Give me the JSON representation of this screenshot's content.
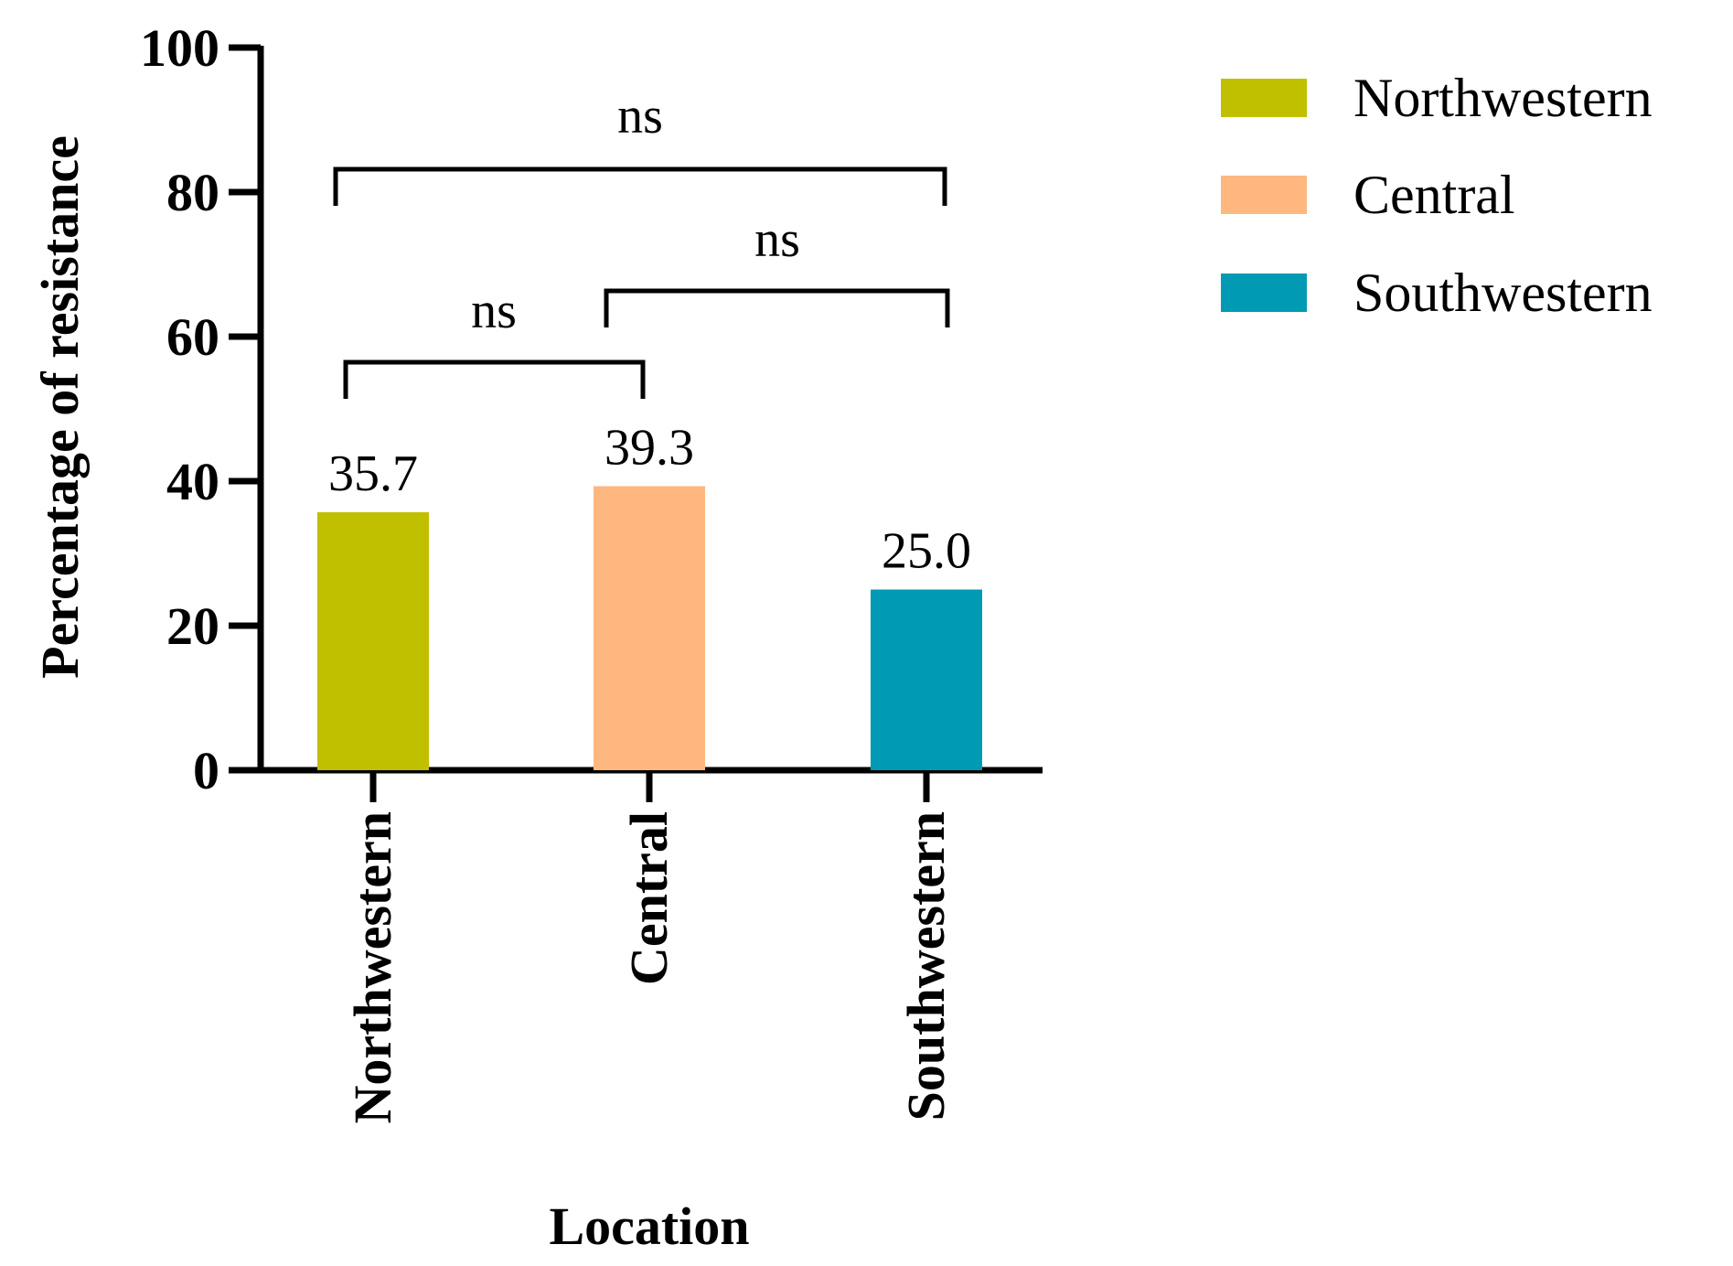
{
  "chart_data": {
    "type": "bar",
    "title": "",
    "xlabel": "Location",
    "ylabel": "Percentage of resistance",
    "ylim": [
      0,
      100
    ],
    "yticks": [
      0,
      20,
      40,
      60,
      80,
      100
    ],
    "categories": [
      "Northwestern",
      "Central",
      "Southwestern"
    ],
    "values": [
      35.7,
      39.3,
      25.0
    ],
    "data_labels": [
      "35.7",
      "39.3",
      "25.0"
    ],
    "colors": [
      "#c0c000",
      "#feb77e",
      "#009ab4"
    ],
    "grid": false,
    "legend": {
      "position": "top-right",
      "entries": [
        "Northwestern",
        "Central",
        "Southwestern"
      ]
    },
    "significance": [
      {
        "from": "Northwestern",
        "to": "Central",
        "label": "ns"
      },
      {
        "from": "Central",
        "to": "Southwestern",
        "label": "ns"
      },
      {
        "from": "Northwestern",
        "to": "Southwestern",
        "label": "ns"
      }
    ]
  }
}
